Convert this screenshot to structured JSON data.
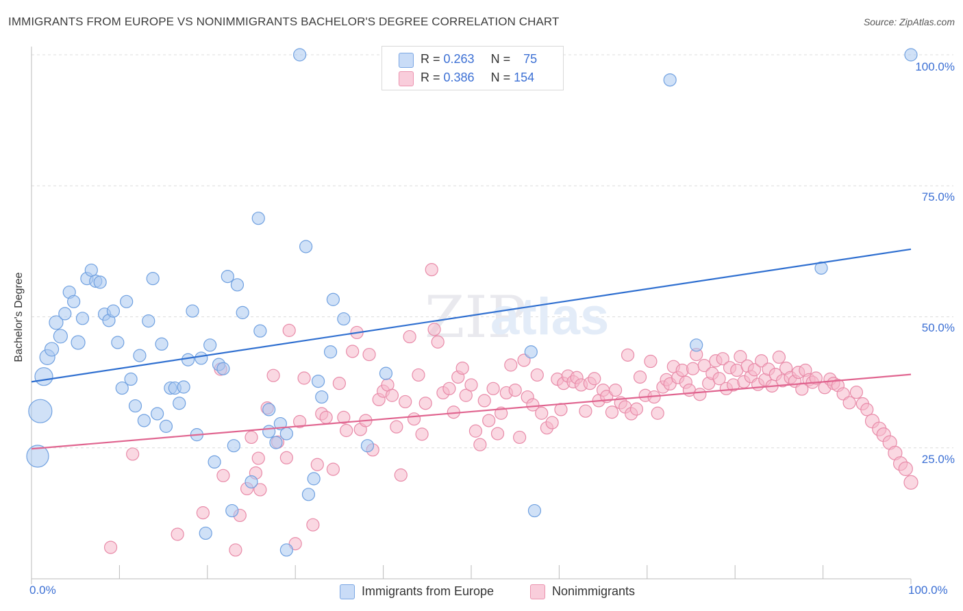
{
  "title": "IMMIGRANTS FROM EUROPE VS NONIMMIGRANTS BACHELOR'S DEGREE CORRELATION CHART",
  "source": "Source: ZipAtlas.com",
  "watermark": {
    "zip": "ZIP",
    "atlas": "atlas"
  },
  "colors": {
    "blue_fill": "#aac8f0",
    "blue_stroke": "#6fa0e0",
    "blue_line": "#2f6fd0",
    "pink_fill": "#f5b8cb",
    "pink_stroke": "#e88aa8",
    "pink_line": "#e0648f",
    "grid": "#dcdcdc",
    "tick_text": "#3b6fd4"
  },
  "legend": {
    "rows": [
      {
        "r_label": "R = ",
        "r_value": "0.263",
        "n_label": "N = ",
        "n_value": "75",
        "color": "#aac8f0"
      },
      {
        "r_label": "R = ",
        "r_value": "0.386",
        "n_label": "N = ",
        "n_value": "154",
        "color": "#f5b8cb"
      }
    ]
  },
  "bottom_legend": [
    {
      "label": "Immigrants from Europe",
      "color": "#aac8f0"
    },
    {
      "label": "Nonimmigrants",
      "color": "#f5b8cb"
    }
  ],
  "axes": {
    "ylabel": "Bachelor's Degree",
    "x_ticks": [
      "0.0%",
      "100.0%"
    ],
    "y_ticks": [
      "100.0%",
      "75.0%",
      "50.0%",
      "25.0%"
    ]
  },
  "chart_data": {
    "type": "scatter",
    "xlabel": "",
    "ylabel": "Bachelor's Degree",
    "xlim": [
      0,
      100
    ],
    "ylim": [
      0,
      100
    ],
    "y_gridlines": [
      25,
      50,
      75,
      100
    ],
    "grid": true,
    "series": [
      {
        "name": "Immigrants from Europe",
        "r": 0.263,
        "n": 75,
        "trend": {
          "x": [
            0,
            100
          ],
          "y": [
            37.6,
            62.9
          ]
        },
        "points": [
          {
            "x": 0.7,
            "y": 23.4,
            "s": 16
          },
          {
            "x": 1.0,
            "y": 32.0,
            "s": 17
          },
          {
            "x": 1.4,
            "y": 38.6,
            "s": 13
          },
          {
            "x": 1.8,
            "y": 42.3,
            "s": 11
          },
          {
            "x": 2.3,
            "y": 43.8,
            "s": 10
          },
          {
            "x": 2.8,
            "y": 48.9,
            "s": 10
          },
          {
            "x": 3.3,
            "y": 46.3,
            "s": 10
          },
          {
            "x": 3.8,
            "y": 50.6,
            "s": 9
          },
          {
            "x": 4.3,
            "y": 54.7,
            "s": 9
          },
          {
            "x": 4.8,
            "y": 52.9,
            "s": 9
          },
          {
            "x": 5.3,
            "y": 45.1,
            "s": 10
          },
          {
            "x": 5.8,
            "y": 49.7,
            "s": 9
          },
          {
            "x": 6.3,
            "y": 57.3,
            "s": 9
          },
          {
            "x": 6.8,
            "y": 58.9,
            "s": 9
          },
          {
            "x": 7.3,
            "y": 56.8,
            "s": 9
          },
          {
            "x": 7.8,
            "y": 56.6,
            "s": 9
          },
          {
            "x": 8.3,
            "y": 50.5,
            "s": 9
          },
          {
            "x": 8.8,
            "y": 49.3,
            "s": 9
          },
          {
            "x": 9.3,
            "y": 51.1,
            "s": 9
          },
          {
            "x": 9.8,
            "y": 45.1,
            "s": 9
          },
          {
            "x": 10.3,
            "y": 36.4,
            "s": 9
          },
          {
            "x": 10.8,
            "y": 52.9,
            "s": 9
          },
          {
            "x": 11.3,
            "y": 38.1,
            "s": 9
          },
          {
            "x": 11.8,
            "y": 33.0,
            "s": 9
          },
          {
            "x": 12.3,
            "y": 42.6,
            "s": 9
          },
          {
            "x": 12.8,
            "y": 30.2,
            "s": 9
          },
          {
            "x": 13.3,
            "y": 49.2,
            "s": 9
          },
          {
            "x": 13.8,
            "y": 57.3,
            "s": 9
          },
          {
            "x": 14.3,
            "y": 31.5,
            "s": 9
          },
          {
            "x": 14.8,
            "y": 44.8,
            "s": 9
          },
          {
            "x": 15.3,
            "y": 29.1,
            "s": 9
          },
          {
            "x": 15.8,
            "y": 36.4,
            "s": 9
          },
          {
            "x": 16.3,
            "y": 36.4,
            "s": 9
          },
          {
            "x": 16.8,
            "y": 33.5,
            "s": 9
          },
          {
            "x": 17.3,
            "y": 36.6,
            "s": 9
          },
          {
            "x": 17.8,
            "y": 41.8,
            "s": 9
          },
          {
            "x": 18.3,
            "y": 51.1,
            "s": 9
          },
          {
            "x": 18.8,
            "y": 27.5,
            "s": 9
          },
          {
            "x": 19.3,
            "y": 42.1,
            "s": 9
          },
          {
            "x": 19.8,
            "y": 8.7,
            "s": 9
          },
          {
            "x": 20.3,
            "y": 44.6,
            "s": 9
          },
          {
            "x": 20.8,
            "y": 22.3,
            "s": 9
          },
          {
            "x": 21.3,
            "y": 40.9,
            "s": 9
          },
          {
            "x": 21.8,
            "y": 40.1,
            "s": 9
          },
          {
            "x": 22.3,
            "y": 57.7,
            "s": 9
          },
          {
            "x": 22.8,
            "y": 13.0,
            "s": 9
          },
          {
            "x": 23.0,
            "y": 25.4,
            "s": 9
          },
          {
            "x": 23.4,
            "y": 56.1,
            "s": 9
          },
          {
            "x": 24.0,
            "y": 50.8,
            "s": 9
          },
          {
            "x": 25.0,
            "y": 18.5,
            "s": 9
          },
          {
            "x": 25.8,
            "y": 68.8,
            "s": 9
          },
          {
            "x": 26.0,
            "y": 47.3,
            "s": 9
          },
          {
            "x": 27.0,
            "y": 32.3,
            "s": 9
          },
          {
            "x": 27.0,
            "y": 28.1,
            "s": 9
          },
          {
            "x": 27.8,
            "y": 26.0,
            "s": 9
          },
          {
            "x": 28.3,
            "y": 29.6,
            "s": 9
          },
          {
            "x": 29.0,
            "y": 27.7,
            "s": 9
          },
          {
            "x": 29.0,
            "y": 5.5,
            "s": 9
          },
          {
            "x": 30.5,
            "y": 100.0,
            "s": 9
          },
          {
            "x": 31.2,
            "y": 63.4,
            "s": 9
          },
          {
            "x": 31.5,
            "y": 16.1,
            "s": 9
          },
          {
            "x": 32.1,
            "y": 19.1,
            "s": 9
          },
          {
            "x": 32.6,
            "y": 37.7,
            "s": 9
          },
          {
            "x": 33.0,
            "y": 34.7,
            "s": 9
          },
          {
            "x": 34.0,
            "y": 43.3,
            "s": 9
          },
          {
            "x": 34.3,
            "y": 53.3,
            "s": 9
          },
          {
            "x": 35.5,
            "y": 49.6,
            "s": 9
          },
          {
            "x": 38.2,
            "y": 25.4,
            "s": 9
          },
          {
            "x": 40.3,
            "y": 39.2,
            "s": 9
          },
          {
            "x": 56.8,
            "y": 43.3,
            "s": 9
          },
          {
            "x": 57.2,
            "y": 13.0,
            "s": 9
          },
          {
            "x": 72.6,
            "y": 95.2,
            "s": 9
          },
          {
            "x": 75.6,
            "y": 44.6,
            "s": 9
          },
          {
            "x": 89.8,
            "y": 59.3,
            "s": 9
          },
          {
            "x": 100.0,
            "y": 100.0,
            "s": 9
          }
        ]
      },
      {
        "name": "Nonimmigrants",
        "r": 0.386,
        "n": 154,
        "trend": {
          "x": [
            0,
            100
          ],
          "y": [
            24.8,
            39.0
          ]
        },
        "points": [
          {
            "x": 9.0,
            "y": 6.0
          },
          {
            "x": 11.5,
            "y": 23.8
          },
          {
            "x": 16.6,
            "y": 8.5
          },
          {
            "x": 19.5,
            "y": 12.6
          },
          {
            "x": 21.5,
            "y": 40.0
          },
          {
            "x": 21.8,
            "y": 19.7
          },
          {
            "x": 23.7,
            "y": 12.1
          },
          {
            "x": 23.2,
            "y": 5.5
          },
          {
            "x": 24.5,
            "y": 17.2
          },
          {
            "x": 25.0,
            "y": 27.0
          },
          {
            "x": 25.5,
            "y": 20.2
          },
          {
            "x": 25.8,
            "y": 23.0
          },
          {
            "x": 26.0,
            "y": 17.0
          },
          {
            "x": 26.8,
            "y": 32.6
          },
          {
            "x": 27.5,
            "y": 38.8
          },
          {
            "x": 28.0,
            "y": 26.1
          },
          {
            "x": 29.0,
            "y": 23.1
          },
          {
            "x": 29.3,
            "y": 47.4
          },
          {
            "x": 30.0,
            "y": 6.7
          },
          {
            "x": 30.5,
            "y": 30.0
          },
          {
            "x": 31.0,
            "y": 38.3
          },
          {
            "x": 32.0,
            "y": 10.3
          },
          {
            "x": 32.5,
            "y": 21.8
          },
          {
            "x": 33.0,
            "y": 31.5
          },
          {
            "x": 33.5,
            "y": 30.8
          },
          {
            "x": 34.3,
            "y": 20.9
          },
          {
            "x": 35.0,
            "y": 37.3
          },
          {
            "x": 35.5,
            "y": 30.8
          },
          {
            "x": 35.8,
            "y": 28.3
          },
          {
            "x": 36.5,
            "y": 43.4
          },
          {
            "x": 37.0,
            "y": 47.0
          },
          {
            "x": 37.4,
            "y": 28.5
          },
          {
            "x": 38.0,
            "y": 30.2
          },
          {
            "x": 38.4,
            "y": 42.8
          },
          {
            "x": 38.8,
            "y": 24.6
          },
          {
            "x": 39.5,
            "y": 34.2
          },
          {
            "x": 40.0,
            "y": 35.8
          },
          {
            "x": 40.5,
            "y": 37.0
          },
          {
            "x": 41.0,
            "y": 35.0
          },
          {
            "x": 41.5,
            "y": 29.0
          },
          {
            "x": 42.0,
            "y": 19.8
          },
          {
            "x": 42.5,
            "y": 33.8
          },
          {
            "x": 43.0,
            "y": 46.2
          },
          {
            "x": 43.5,
            "y": 30.5
          },
          {
            "x": 44.0,
            "y": 38.9
          },
          {
            "x": 44.4,
            "y": 27.6
          },
          {
            "x": 44.8,
            "y": 33.5
          },
          {
            "x": 45.5,
            "y": 59.0
          },
          {
            "x": 45.8,
            "y": 47.6
          },
          {
            "x": 46.2,
            "y": 45.2
          },
          {
            "x": 46.8,
            "y": 35.5
          },
          {
            "x": 47.5,
            "y": 36.3
          },
          {
            "x": 48.0,
            "y": 31.8
          },
          {
            "x": 48.5,
            "y": 38.5
          },
          {
            "x": 49.0,
            "y": 40.2
          },
          {
            "x": 49.4,
            "y": 35.0
          },
          {
            "x": 50.0,
            "y": 37.0
          },
          {
            "x": 50.5,
            "y": 28.2
          },
          {
            "x": 51.0,
            "y": 25.6
          },
          {
            "x": 51.5,
            "y": 34.0
          },
          {
            "x": 52.0,
            "y": 30.2
          },
          {
            "x": 52.5,
            "y": 36.3
          },
          {
            "x": 53.0,
            "y": 27.7
          },
          {
            "x": 53.4,
            "y": 31.6
          },
          {
            "x": 54.0,
            "y": 35.5
          },
          {
            "x": 54.5,
            "y": 40.8
          },
          {
            "x": 55.0,
            "y": 36.0
          },
          {
            "x": 55.5,
            "y": 27.0
          },
          {
            "x": 56.0,
            "y": 41.7
          },
          {
            "x": 56.4,
            "y": 34.7
          },
          {
            "x": 57.0,
            "y": 33.2
          },
          {
            "x": 57.5,
            "y": 38.9
          },
          {
            "x": 58.0,
            "y": 31.6
          },
          {
            "x": 58.6,
            "y": 28.8
          },
          {
            "x": 59.2,
            "y": 29.8
          },
          {
            "x": 59.8,
            "y": 38.1
          },
          {
            "x": 60.2,
            "y": 32.3
          },
          {
            "x": 60.5,
            "y": 37.3
          },
          {
            "x": 61.0,
            "y": 38.7
          },
          {
            "x": 61.6,
            "y": 37.6
          },
          {
            "x": 62.0,
            "y": 38.4
          },
          {
            "x": 62.5,
            "y": 37.0
          },
          {
            "x": 63.0,
            "y": 32.0
          },
          {
            "x": 63.5,
            "y": 37.3
          },
          {
            "x": 64.0,
            "y": 38.2
          },
          {
            "x": 64.5,
            "y": 34.0
          },
          {
            "x": 65.0,
            "y": 36.0
          },
          {
            "x": 65.4,
            "y": 34.8
          },
          {
            "x": 66.0,
            "y": 31.8
          },
          {
            "x": 66.4,
            "y": 36.0
          },
          {
            "x": 67.0,
            "y": 33.6
          },
          {
            "x": 67.5,
            "y": 32.8
          },
          {
            "x": 67.8,
            "y": 42.7
          },
          {
            "x": 68.2,
            "y": 31.5
          },
          {
            "x": 68.8,
            "y": 32.4
          },
          {
            "x": 69.2,
            "y": 38.5
          },
          {
            "x": 69.8,
            "y": 35.0
          },
          {
            "x": 70.4,
            "y": 41.5
          },
          {
            "x": 70.8,
            "y": 34.7
          },
          {
            "x": 71.2,
            "y": 31.6
          },
          {
            "x": 71.8,
            "y": 36.6
          },
          {
            "x": 72.2,
            "y": 38.0
          },
          {
            "x": 72.6,
            "y": 37.2
          },
          {
            "x": 73.0,
            "y": 40.5
          },
          {
            "x": 73.5,
            "y": 38.4
          },
          {
            "x": 74.0,
            "y": 39.8
          },
          {
            "x": 74.4,
            "y": 37.5
          },
          {
            "x": 74.8,
            "y": 36.0
          },
          {
            "x": 75.2,
            "y": 40.1
          },
          {
            "x": 75.6,
            "y": 42.8
          },
          {
            "x": 76.0,
            "y": 35.2
          },
          {
            "x": 76.5,
            "y": 40.7
          },
          {
            "x": 77.0,
            "y": 37.3
          },
          {
            "x": 77.4,
            "y": 39.2
          },
          {
            "x": 77.8,
            "y": 41.6
          },
          {
            "x": 78.2,
            "y": 38.2
          },
          {
            "x": 78.6,
            "y": 42.0
          },
          {
            "x": 79.0,
            "y": 36.3
          },
          {
            "x": 79.4,
            "y": 40.3
          },
          {
            "x": 79.8,
            "y": 37.0
          },
          {
            "x": 80.2,
            "y": 39.8
          },
          {
            "x": 80.6,
            "y": 42.4
          },
          {
            "x": 81.0,
            "y": 37.6
          },
          {
            "x": 81.4,
            "y": 40.6
          },
          {
            "x": 81.8,
            "y": 38.6
          },
          {
            "x": 82.2,
            "y": 39.9
          },
          {
            "x": 82.6,
            "y": 37.1
          },
          {
            "x": 83.0,
            "y": 41.6
          },
          {
            "x": 83.4,
            "y": 38.0
          },
          {
            "x": 83.8,
            "y": 40.0
          },
          {
            "x": 84.2,
            "y": 36.8
          },
          {
            "x": 84.6,
            "y": 39.0
          },
          {
            "x": 85.0,
            "y": 42.3
          },
          {
            "x": 85.4,
            "y": 37.8
          },
          {
            "x": 85.8,
            "y": 40.2
          },
          {
            "x": 86.3,
            "y": 38.4
          },
          {
            "x": 86.8,
            "y": 37.7
          },
          {
            "x": 87.2,
            "y": 39.4
          },
          {
            "x": 87.6,
            "y": 36.2
          },
          {
            "x": 88.0,
            "y": 39.8
          },
          {
            "x": 88.4,
            "y": 38.0
          },
          {
            "x": 88.8,
            "y": 37.5
          },
          {
            "x": 89.2,
            "y": 38.3
          },
          {
            "x": 90.2,
            "y": 36.5
          },
          {
            "x": 90.8,
            "y": 38.1
          },
          {
            "x": 91.2,
            "y": 37.3
          },
          {
            "x": 91.7,
            "y": 36.9
          },
          {
            "x": 92.3,
            "y": 35.3
          },
          {
            "x": 93.0,
            "y": 33.6
          },
          {
            "x": 93.8,
            "y": 35.6
          },
          {
            "x": 94.5,
            "y": 33.4
          },
          {
            "x": 95.0,
            "y": 32.3
          }
        ]
      }
    ],
    "pink_tail": [
      {
        "x": 95.6,
        "y": 30.1
      },
      {
        "x": 96.4,
        "y": 28.6
      },
      {
        "x": 96.9,
        "y": 27.5
      },
      {
        "x": 97.6,
        "y": 26.0
      },
      {
        "x": 98.2,
        "y": 24.0
      },
      {
        "x": 98.8,
        "y": 22.0
      },
      {
        "x": 99.4,
        "y": 21.0
      },
      {
        "x": 100.0,
        "y": 18.4
      }
    ]
  }
}
